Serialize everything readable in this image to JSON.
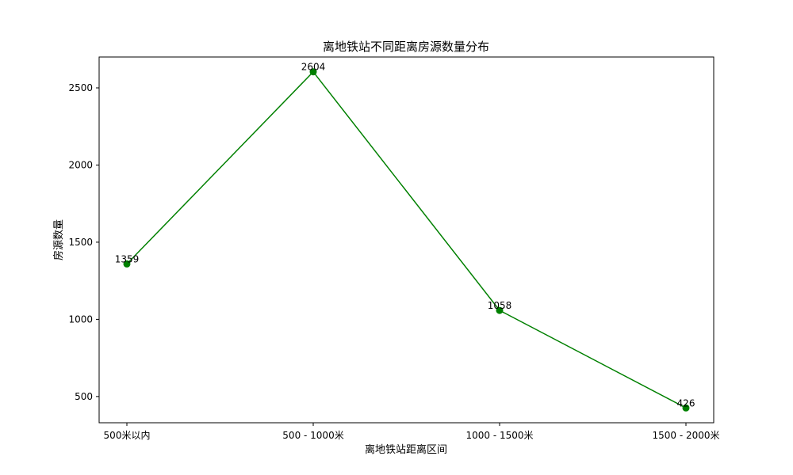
{
  "chart_data": {
    "type": "line",
    "title": "离地铁站不同距离房源数量分布",
    "xlabel": "离地铁站距离区间",
    "ylabel": "房源数量",
    "categories": [
      "500米以内",
      "500 - 1000米",
      "1000 - 1500米",
      "1500 - 2000米"
    ],
    "values": [
      1359,
      2604,
      1058,
      426
    ],
    "data_labels": [
      "1359",
      "2604",
      "1058",
      "426"
    ],
    "yticks": [
      500,
      1000,
      1500,
      2000,
      2500
    ],
    "ytick_labels": [
      "500",
      "1000",
      "1500",
      "2000",
      "2500"
    ],
    "ylim": [
      330,
      2700
    ],
    "grid": false,
    "line_color": "#008000",
    "marker": "circle"
  }
}
